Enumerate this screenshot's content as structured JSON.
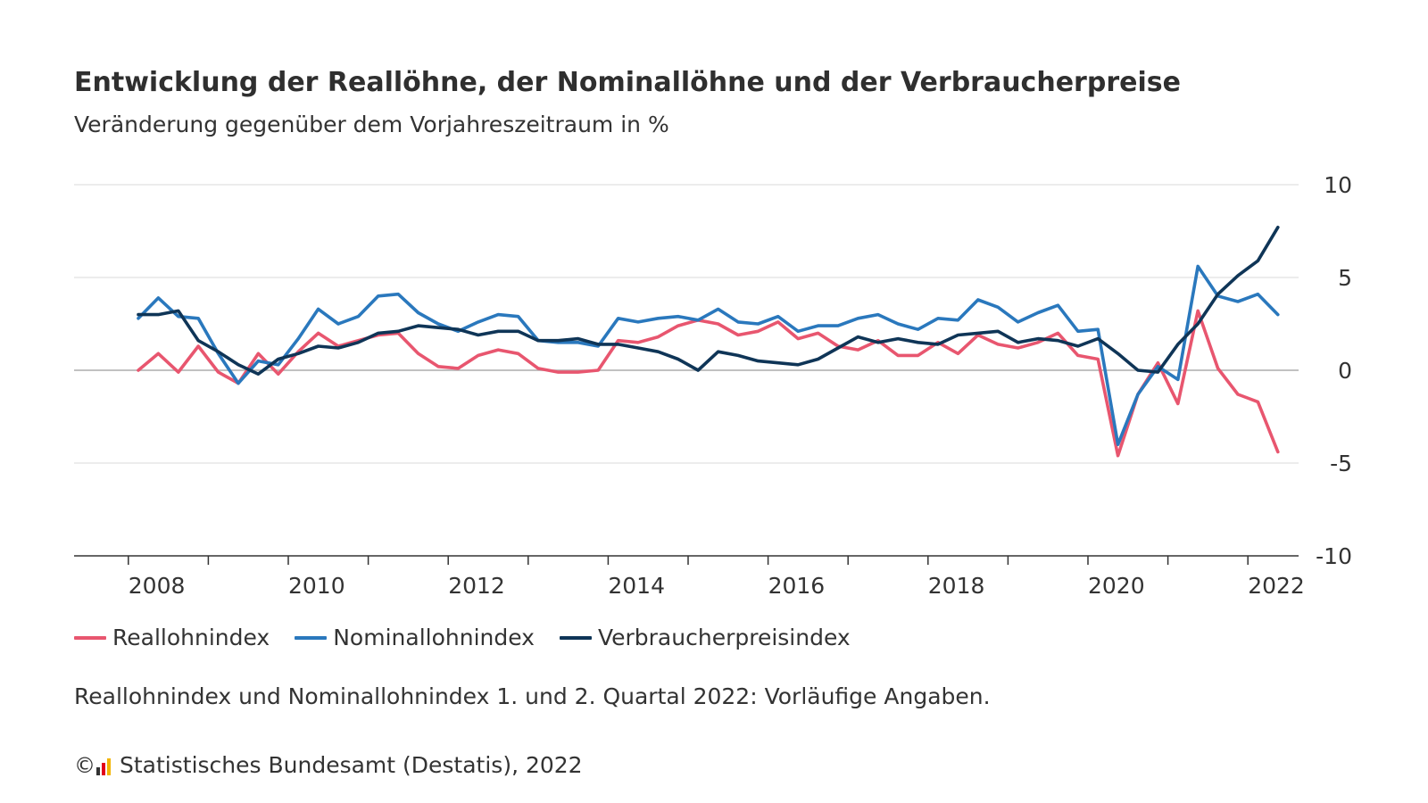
{
  "header": {
    "title": "Entwicklung der Reallöhne, der Nominallöhne und der Verbraucherpreise",
    "subtitle": "Veränderung gegenüber dem Vorjahreszeitraum in %"
  },
  "legend": [
    {
      "label": "Reallohnindex",
      "color": "#e8566f"
    },
    {
      "label": "Nominallohnindex",
      "color": "#2a78bd"
    },
    {
      "label": "Verbraucherpreisindex",
      "color": "#0f3557"
    }
  ],
  "footer": {
    "note": "Reallohnindex und Nominallohnindex 1. und 2. Quartal 2022: Vorläufige Angaben.",
    "copyright": "©",
    "source": "Statistisches Bundesamt (Destatis), 2022"
  },
  "chart_data": {
    "type": "line",
    "x_tick_labels": [
      "2008",
      "2010",
      "2012",
      "2014",
      "2016",
      "2018",
      "2020",
      "2022"
    ],
    "y_tick_labels": [
      "10",
      "5",
      "0",
      "-5",
      "-10"
    ],
    "ylim": [
      -10,
      10
    ],
    "grid": true,
    "legend_position": "bottom",
    "x": [
      "2008 Q1",
      "2008 Q2",
      "2008 Q3",
      "2008 Q4",
      "2009 Q1",
      "2009 Q2",
      "2009 Q3",
      "2009 Q4",
      "2010 Q1",
      "2010 Q2",
      "2010 Q3",
      "2010 Q4",
      "2011 Q1",
      "2011 Q2",
      "2011 Q3",
      "2011 Q4",
      "2012 Q1",
      "2012 Q2",
      "2012 Q3",
      "2012 Q4",
      "2013 Q1",
      "2013 Q2",
      "2013 Q3",
      "2013 Q4",
      "2014 Q1",
      "2014 Q2",
      "2014 Q3",
      "2014 Q4",
      "2015 Q1",
      "2015 Q2",
      "2015 Q3",
      "2015 Q4",
      "2016 Q1",
      "2016 Q2",
      "2016 Q3",
      "2016 Q4",
      "2017 Q1",
      "2017 Q2",
      "2017 Q3",
      "2017 Q4",
      "2018 Q1",
      "2018 Q2",
      "2018 Q3",
      "2018 Q4",
      "2019 Q1",
      "2019 Q2",
      "2019 Q3",
      "2019 Q4",
      "2020 Q1",
      "2020 Q2",
      "2020 Q3",
      "2020 Q4",
      "2021 Q1",
      "2021 Q2",
      "2021 Q3",
      "2021 Q4",
      "2022 Q1",
      "2022 Q2"
    ],
    "series": [
      {
        "name": "Reallohnindex",
        "color": "#e8566f",
        "values": [
          0.0,
          0.9,
          -0.1,
          1.3,
          -0.1,
          -0.7,
          0.9,
          -0.2,
          1.0,
          2.0,
          1.3,
          1.6,
          1.9,
          2.0,
          0.9,
          0.2,
          0.1,
          0.8,
          1.1,
          0.9,
          0.1,
          -0.1,
          -0.1,
          0.0,
          1.6,
          1.5,
          1.8,
          2.4,
          2.7,
          2.5,
          1.9,
          2.1,
          2.6,
          1.7,
          2.0,
          1.3,
          1.1,
          1.6,
          0.8,
          0.8,
          1.5,
          0.9,
          1.9,
          1.4,
          1.2,
          1.5,
          2.0,
          0.8,
          0.6,
          -4.6,
          -1.3,
          0.4,
          -1.8,
          3.2,
          0.1,
          -1.3,
          -1.7,
          -4.4
        ]
      },
      {
        "name": "Nominallohnindex",
        "color": "#2a78bd",
        "values": [
          2.8,
          3.9,
          2.9,
          2.8,
          0.9,
          -0.7,
          0.5,
          0.3,
          1.7,
          3.3,
          2.5,
          2.9,
          4.0,
          4.1,
          3.1,
          2.5,
          2.1,
          2.6,
          3.0,
          2.9,
          1.6,
          1.5,
          1.5,
          1.3,
          2.8,
          2.6,
          2.8,
          2.9,
          2.7,
          3.3,
          2.6,
          2.5,
          2.9,
          2.1,
          2.4,
          2.4,
          2.8,
          3.0,
          2.5,
          2.2,
          2.8,
          2.7,
          3.8,
          3.4,
          2.6,
          3.1,
          3.5,
          2.1,
          2.2,
          -4.0,
          -1.3,
          0.2,
          -0.5,
          5.6,
          4.0,
          3.7,
          4.1,
          3.0
        ]
      },
      {
        "name": "Verbraucherpreisindex",
        "color": "#0f3557",
        "values": [
          3.0,
          3.0,
          3.2,
          1.6,
          1.0,
          0.3,
          -0.2,
          0.6,
          0.9,
          1.3,
          1.2,
          1.5,
          2.0,
          2.1,
          2.4,
          2.3,
          2.2,
          1.9,
          2.1,
          2.1,
          1.6,
          1.6,
          1.7,
          1.4,
          1.4,
          1.2,
          1.0,
          0.6,
          0.0,
          1.0,
          0.8,
          0.5,
          0.4,
          0.3,
          0.6,
          1.2,
          1.8,
          1.5,
          1.7,
          1.5,
          1.4,
          1.9,
          2.0,
          2.1,
          1.5,
          1.7,
          1.6,
          1.3,
          1.7,
          0.9,
          0.0,
          -0.1,
          1.4,
          2.5,
          4.1,
          5.1,
          5.9,
          7.7
        ]
      }
    ]
  }
}
